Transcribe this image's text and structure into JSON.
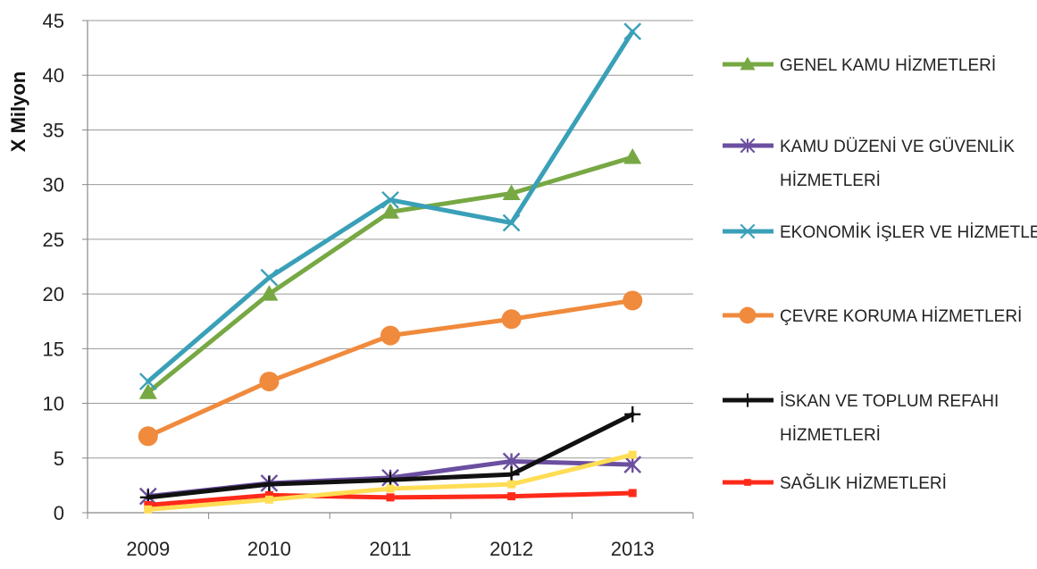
{
  "chart_data": {
    "type": "line",
    "ylabel": "X Milyon",
    "xlabel": "",
    "categories": [
      "2009",
      "2010",
      "2011",
      "2012",
      "2013"
    ],
    "ylim": [
      0,
      45
    ],
    "yticks": [
      0,
      5,
      10,
      15,
      20,
      25,
      30,
      35,
      40,
      45
    ],
    "grid": "horizontal",
    "legend_position": "right",
    "series": [
      {
        "name_lines": [
          "GENEL KAMU HİZMETLERİ"
        ],
        "values": [
          11,
          20,
          27.5,
          29.2,
          32.5
        ],
        "color": "#77a843",
        "marker": "triangle"
      },
      {
        "name_lines": [
          "KAMU DÜZENİ VE GÜVENLİK",
          "HİZMETLERİ"
        ],
        "values": [
          1.5,
          2.7,
          3.2,
          4.7,
          4.4
        ],
        "color": "#6b4fa0",
        "marker": "asterisk"
      },
      {
        "name_lines": [
          "EKONOMİK İŞLER VE HİZMETLER"
        ],
        "values": [
          12,
          21.5,
          28.6,
          26.5,
          44
        ],
        "color": "#3aa0b8",
        "marker": "x"
      },
      {
        "name_lines": [
          "ÇEVRE KORUMA HİZMETLERİ"
        ],
        "values": [
          7,
          12,
          16.2,
          17.7,
          19.4
        ],
        "color": "#f08a3c",
        "marker": "circle"
      },
      {
        "name_lines": [
          "İSKAN VE TOPLUM REFAHI",
          "HİZMETLERİ"
        ],
        "values": [
          1.4,
          2.6,
          3.0,
          3.5,
          9
        ],
        "color": "#111111",
        "marker": "plus"
      },
      {
        "name_lines": [
          "SAĞLIK HİZMETLERİ"
        ],
        "values": [
          0.7,
          1.6,
          1.4,
          1.5,
          1.8
        ],
        "color": "#ff2a1a",
        "marker": "square"
      },
      {
        "name_lines": [],
        "values": [
          0.3,
          1.2,
          2.2,
          2.6,
          5.3
        ],
        "color": "#ffdd55",
        "marker": "square"
      }
    ]
  }
}
